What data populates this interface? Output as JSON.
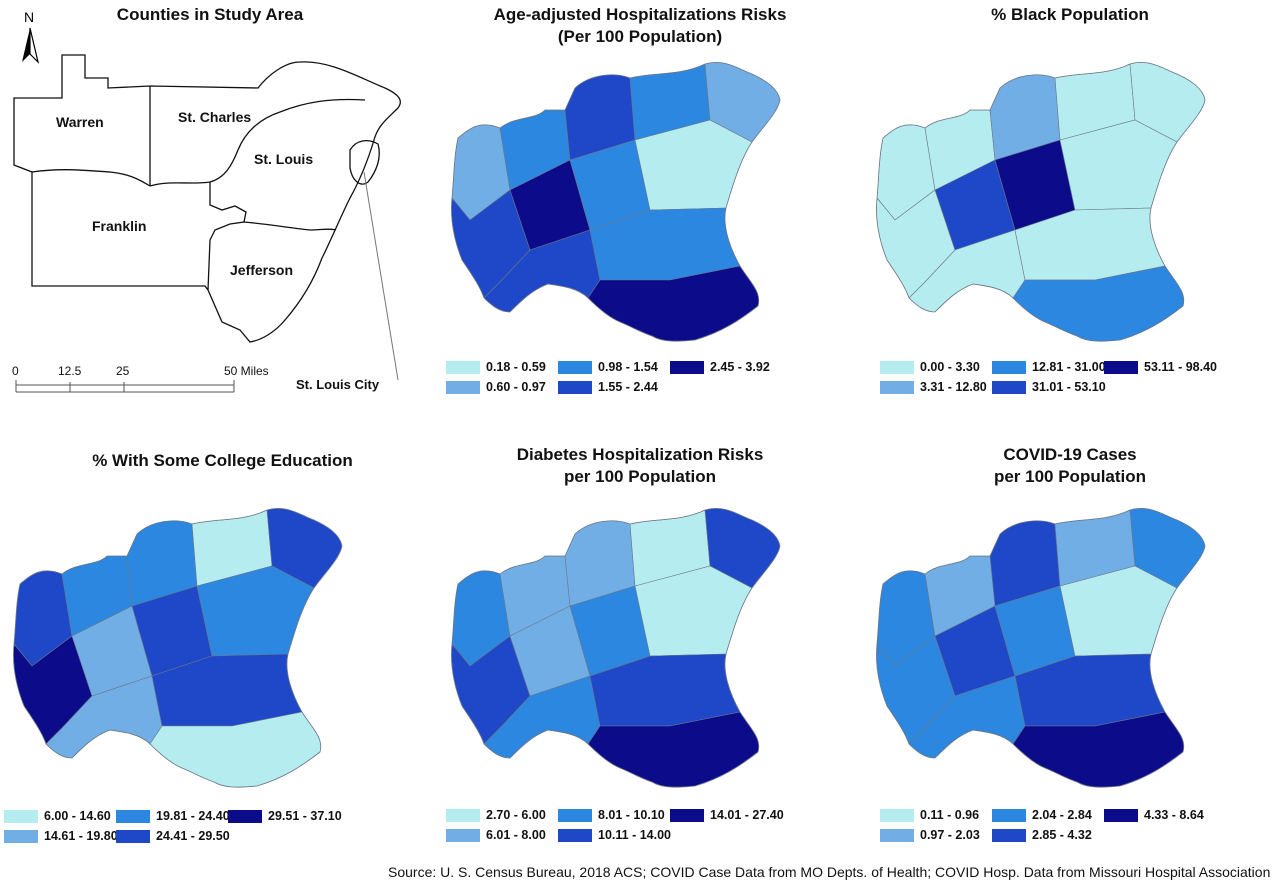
{
  "overview": {
    "title": "Counties in Study Area",
    "north": "N",
    "counties": [
      "Warren",
      "St. Charles",
      "St. Louis",
      "Franklin",
      "Jefferson"
    ],
    "callout": "St. Louis City",
    "scale_labels": [
      "0",
      "12.5",
      "25",
      "50 Miles"
    ]
  },
  "palette": {
    "c1": "#b5ecf0",
    "c2": "#72aee6",
    "c3": "#2b87e0",
    "c4": "#1f48c8",
    "c5": "#0c0c8a",
    "boundary": "#6b7787"
  },
  "panels": [
    {
      "title": "Age-adjusted Hospitalizations Risks\n(Per 100 Population)",
      "legend": [
        "0.18 - 0.59",
        "0.60 - 0.97",
        "0.98 - 1.54",
        "1.55 - 2.44",
        "2.45 - 3.92"
      ]
    },
    {
      "title": "% Black Population",
      "legend": [
        "0.00 - 3.30",
        "3.31 - 12.80",
        "12.81 - 31.00",
        "31.01 - 53.10",
        "53.11 - 98.40"
      ]
    },
    {
      "title": "% With Some College Education",
      "legend": [
        "6.00 - 14.60",
        "14.61 - 19.80",
        "19.81 - 24.40",
        "24.41 - 29.50",
        "29.51 - 37.10"
      ]
    },
    {
      "title": "Diabetes Hospitalization Risks\nper 100 Population",
      "legend": [
        "2.70 - 6.00",
        "6.01 - 8.00",
        "8.01 - 10.10",
        "10.11 - 14.00",
        "14.01 - 27.40"
      ]
    },
    {
      "title": "COVID-19 Cases\nper 100 Population",
      "legend": [
        "0.11 - 0.96",
        "0.97 - 2.03",
        "2.04 - 2.84",
        "2.85 - 4.32",
        "4.33 - 8.64"
      ]
    }
  ],
  "source": "Source: U. S. Census Bureau, 2018 ACS; COVID Case Data from MO Depts. of Health; COVID Hosp. Data from Missouri Hospital Association"
}
